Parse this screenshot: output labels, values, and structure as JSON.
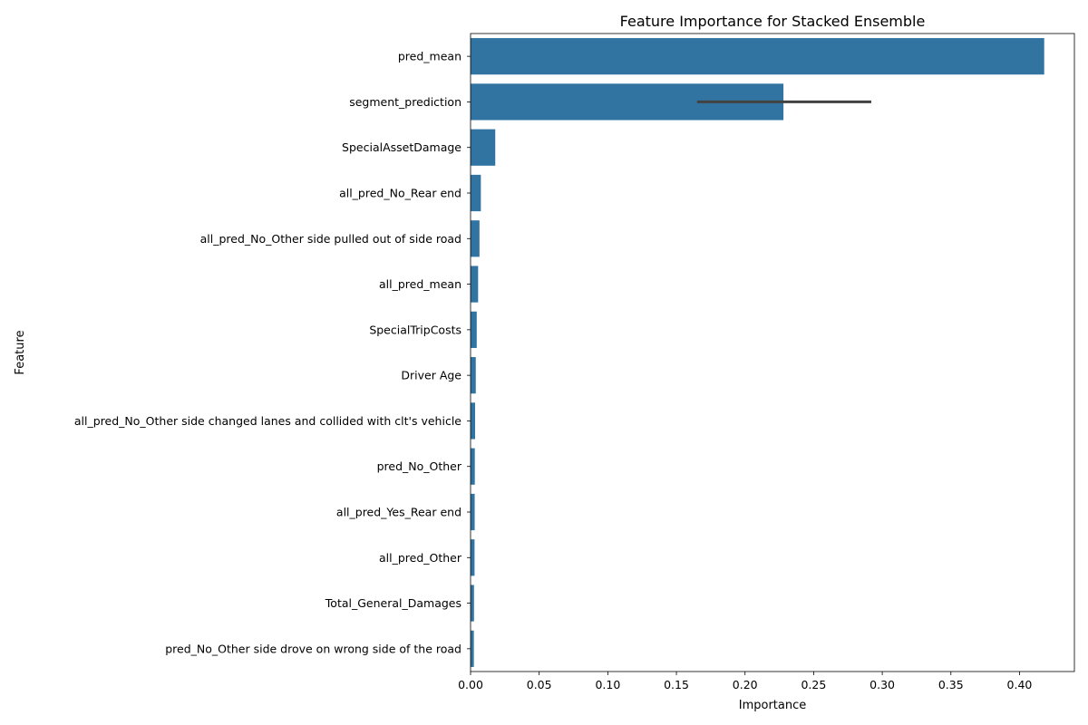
{
  "chart_data": {
    "type": "bar",
    "orientation": "horizontal",
    "title": "Feature Importance for Stacked Ensemble",
    "xlabel": "Importance",
    "ylabel": "Feature",
    "xlim": [
      0,
      0.44
    ],
    "xticks": [
      "0.00",
      "0.05",
      "0.10",
      "0.15",
      "0.20",
      "0.25",
      "0.30",
      "0.35",
      "0.40"
    ],
    "bar_color": "#3274a1",
    "errorbar_color": "#424242",
    "grid": false,
    "categories": [
      "pred_mean",
      "segment_prediction",
      "SpecialAssetDamage",
      "all_pred_No_Rear end",
      "all_pred_No_Other side pulled out of side road",
      "all_pred_mean",
      "SpecialTripCosts",
      "Driver Age",
      "all_pred_No_Other side changed lanes and collided with clt's vehicle",
      "pred_No_Other",
      "all_pred_Yes_Rear end",
      "all_pred_Other",
      "Total_General_Damages",
      "pred_No_Other side drove on wrong side of the road"
    ],
    "values": [
      0.418,
      0.228,
      0.018,
      0.0075,
      0.0065,
      0.0055,
      0.0045,
      0.0038,
      0.0033,
      0.0031,
      0.003,
      0.0029,
      0.0025,
      0.0024
    ],
    "error_bars": [
      null,
      [
        0.165,
        0.292
      ],
      null,
      null,
      null,
      null,
      null,
      null,
      null,
      null,
      null,
      null,
      null,
      null
    ]
  }
}
